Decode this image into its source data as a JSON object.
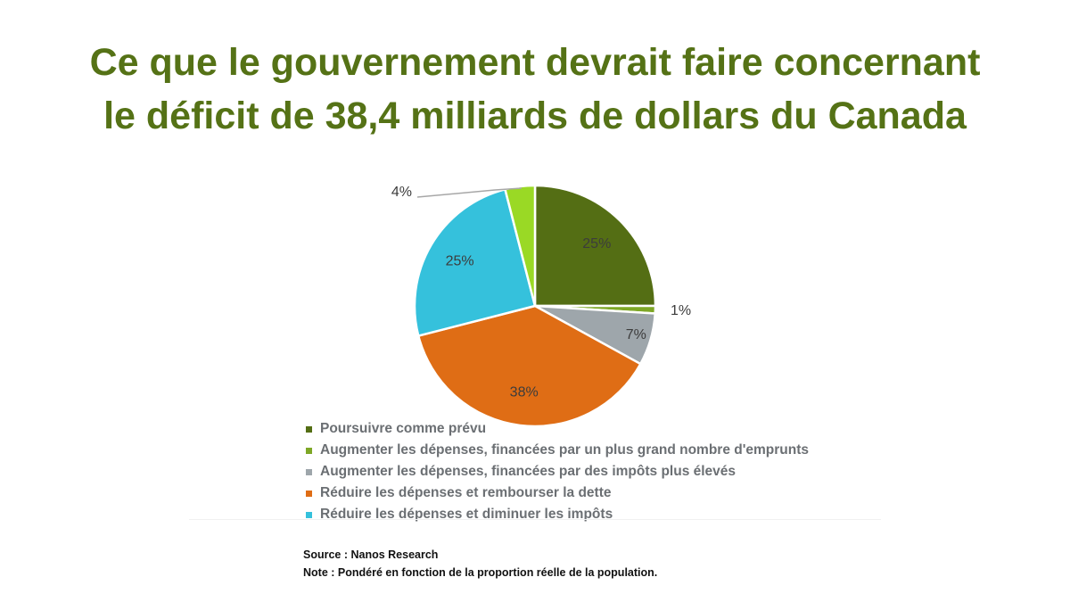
{
  "colors": {
    "title": "#557216",
    "legend_text": "#6b6f73",
    "slice_border": "#ffffff",
    "label_text": "#3c3c3c"
  },
  "chart_data": {
    "type": "pie",
    "title_lines": [
      "Ce que le gouvernement devrait faire concernant",
      "le déficit de 38,4 milliards de dollars du Canada"
    ],
    "slices": [
      {
        "label": "Poursuivre comme prévu",
        "value": 25,
        "display": "25%",
        "color": "#546e14"
      },
      {
        "label": "Augmenter les dépenses, financées par un plus grand nombre d'emprunts",
        "value": 1,
        "display": "1%",
        "color": "#7ea726"
      },
      {
        "label": "Augmenter les dépenses, financées par des impôts plus élevés",
        "value": 7,
        "display": "7%",
        "color": "#9ea6ab"
      },
      {
        "label": "Réduire les dépenses et rembourser la dette",
        "value": 38,
        "display": "38%",
        "color": "#df6d15"
      },
      {
        "label": "Réduire les dépenses et diminuer les impôts",
        "value": 25,
        "display": "25%",
        "color": "#35c1dc"
      },
      {
        "label": "",
        "value": 4,
        "display": "4%",
        "color": "#9ad925"
      }
    ],
    "legend_position": "bottom",
    "start_angle_deg": 0,
    "direction": "clockwise"
  },
  "footer": {
    "source": "Source : Nanos Research",
    "note": "Note : Pondéré en fonction de la proportion réelle de la population."
  }
}
